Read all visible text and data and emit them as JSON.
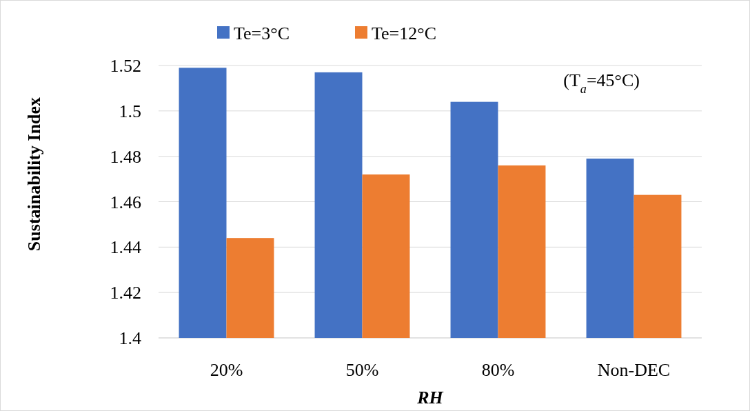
{
  "chart_data": {
    "type": "bar",
    "xlabel": "RH",
    "ylabel": "Sustainability Index",
    "categories": [
      "20%",
      "50%",
      "80%",
      "Non-DEC"
    ],
    "series": [
      {
        "name": "Te=3°C",
        "color": "#4472c4",
        "values": [
          1.519,
          1.517,
          1.504,
          1.479
        ]
      },
      {
        "name": "Te=12°C",
        "color": "#ed7d31",
        "values": [
          1.444,
          1.472,
          1.476,
          1.463
        ]
      }
    ],
    "ylim": [
      1.4,
      1.52
    ],
    "yticks": [
      1.4,
      1.42,
      1.44,
      1.46,
      1.48,
      1.5,
      1.52
    ],
    "grid": "y",
    "legend": "top left",
    "annotations": [
      "(T$_{a}$=45°C)"
    ]
  }
}
